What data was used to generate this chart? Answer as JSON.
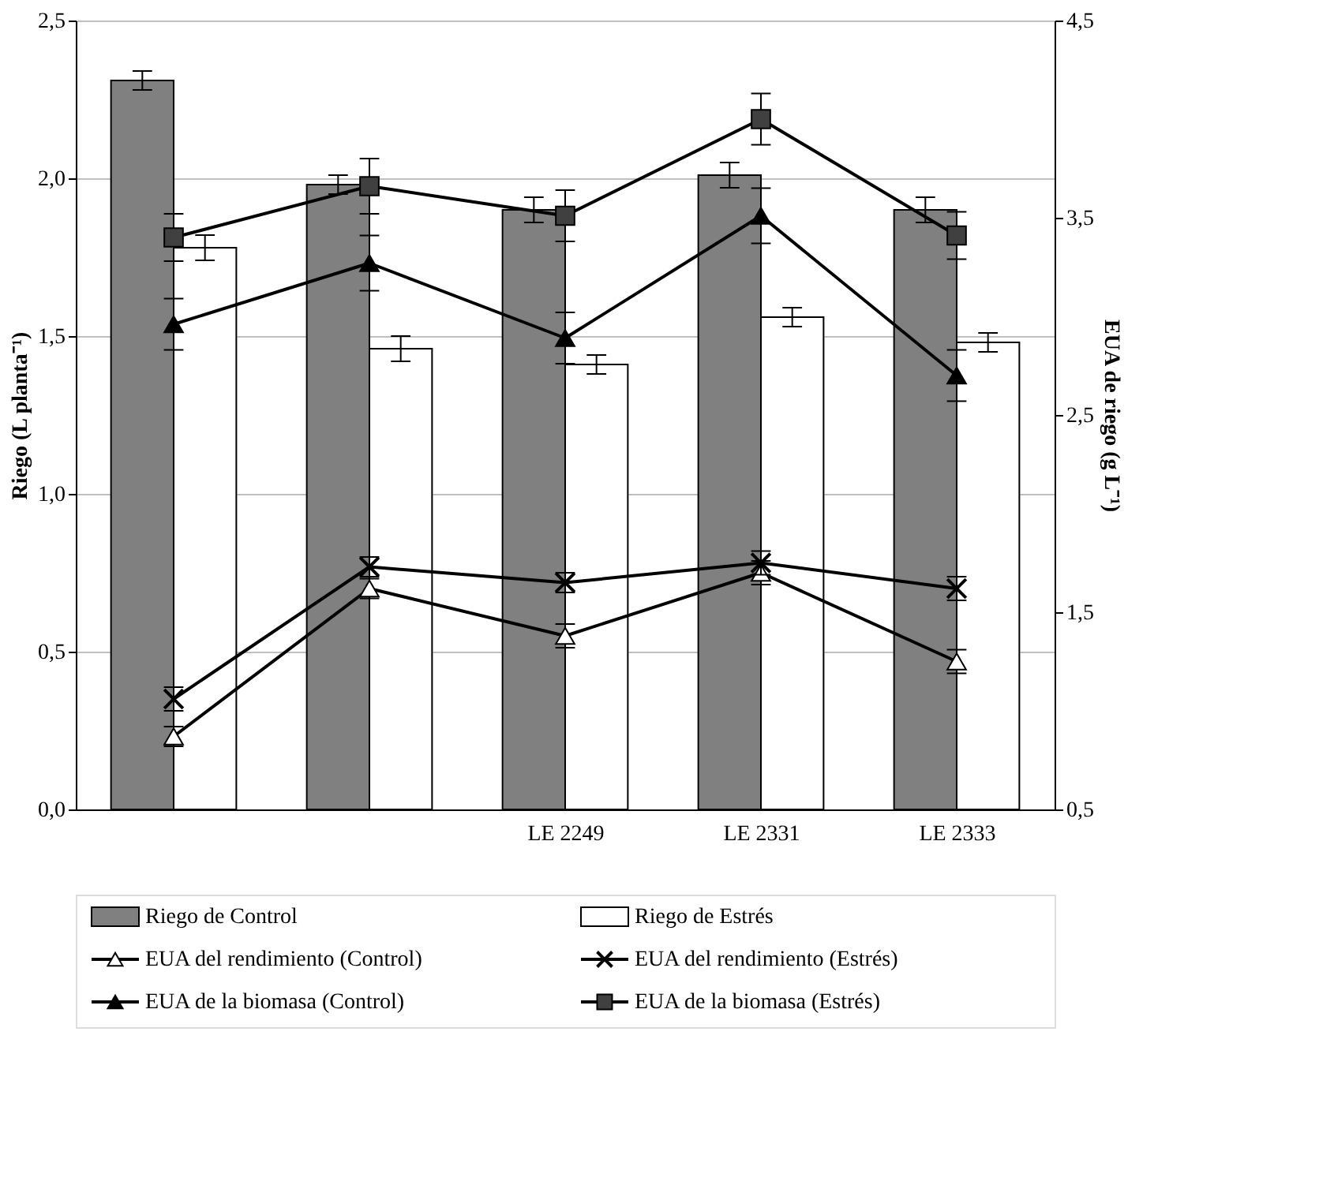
{
  "chart_data": {
    "type": "bar",
    "categories": [
      null,
      null,
      "LE 2249",
      "LE 2331",
      "LE 2333"
    ],
    "ylabel": "Riego (L planta⁻¹)",
    "y2label": "EUA de riego (g L⁻¹)",
    "ylim": [
      0,
      2.5
    ],
    "yticks": [
      {
        "value": 0,
        "label": "0,0"
      },
      {
        "value": 0.5,
        "label": "0,5"
      },
      {
        "value": 1,
        "label": "1,0"
      },
      {
        "value": 1.5,
        "label": "1,5"
      },
      {
        "value": 2,
        "label": "2,0"
      },
      {
        "value": 2.5,
        "label": "2,5"
      }
    ],
    "y2lim": [
      0.5,
      4.5
    ],
    "y2ticks": [
      {
        "value": 0.5,
        "label": "0,5"
      },
      {
        "value": 1.5,
        "label": "1,5"
      },
      {
        "value": 2.5,
        "label": "2,5"
      },
      {
        "value": 3.5,
        "label": "3,5"
      },
      {
        "value": 4.5,
        "label": "4,5"
      }
    ],
    "grid": "y",
    "legend": "bottom",
    "series": [
      {
        "name": "Riego de Control",
        "color": "#808080",
        "values": [
          2.31,
          1.98,
          1.9,
          2.01,
          1.9
        ],
        "errors": [
          0.03,
          0.03,
          0.04,
          0.04,
          0.04
        ]
      },
      {
        "name": "Riego de Estrés",
        "color": "#ffffff",
        "values": [
          1.78,
          1.46,
          1.41,
          1.56,
          1.48
        ],
        "errors": [
          0.04,
          0.04,
          0.03,
          0.03,
          0.03
        ]
      },
      {
        "name": "EUA del rendimiento (Control)",
        "type": "line",
        "axis": "y2",
        "marker": "triangle",
        "color": "#ffffff",
        "values": [
          0.87,
          1.62,
          1.38,
          1.7,
          1.25
        ],
        "errors": [
          0.05,
          0.05,
          0.06,
          0.06,
          0.06
        ]
      },
      {
        "name": "EUA del rendimiento (Estrés)",
        "type": "line",
        "axis": "y2",
        "marker": "cross",
        "color": "#000000",
        "values": [
          1.06,
          1.73,
          1.65,
          1.75,
          1.62
        ],
        "errors": [
          0.06,
          0.05,
          0.05,
          0.06,
          0.06
        ]
      },
      {
        "name": "EUA de la biomasa (Control)",
        "type": "line",
        "axis": "y2",
        "marker": "triangle",
        "color": "#000000",
        "values": [
          2.96,
          3.27,
          2.89,
          3.51,
          2.7
        ],
        "errors": [
          0.13,
          0.14,
          0.13,
          0.14,
          0.13
        ]
      },
      {
        "name": "EUA de la biomasa (Estrés)",
        "type": "line",
        "axis": "y2",
        "marker": "square",
        "color": "#404040",
        "values": [
          3.4,
          3.66,
          3.51,
          4.0,
          3.41
        ],
        "errors": [
          0.12,
          0.14,
          0.13,
          0.13,
          0.12
        ]
      }
    ]
  }
}
